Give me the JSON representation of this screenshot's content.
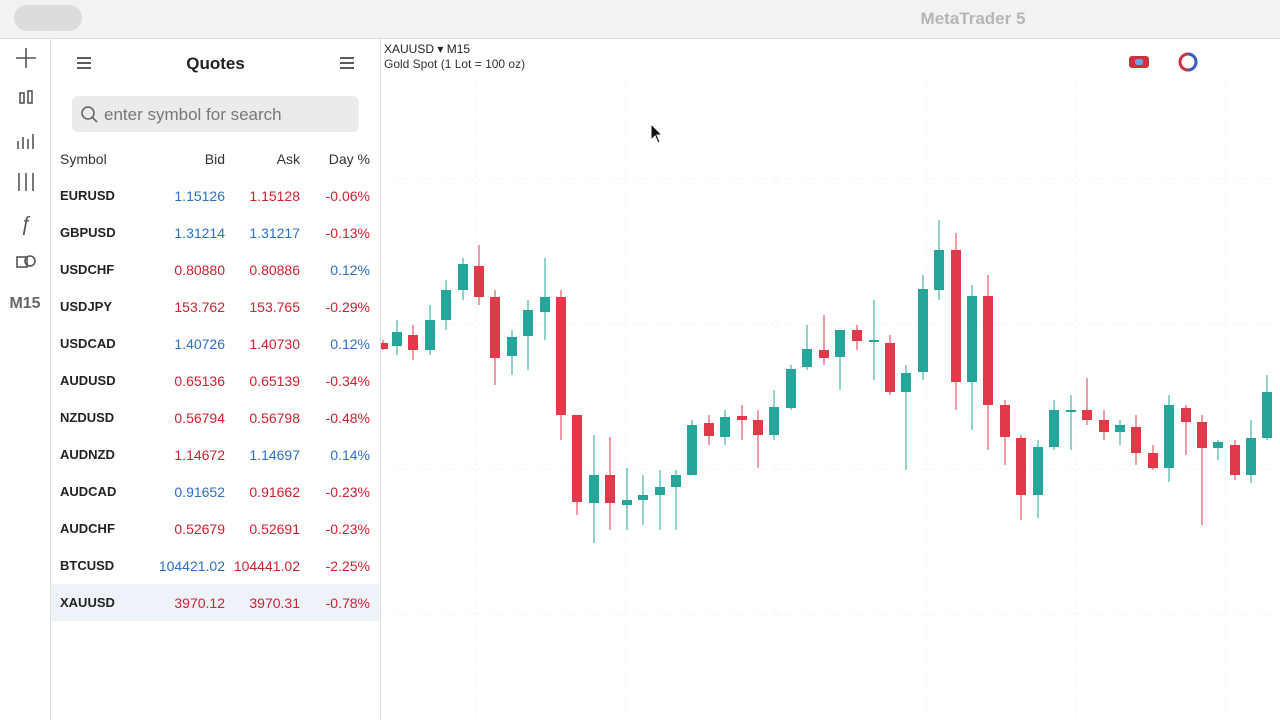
{
  "window": {
    "title": "MetaTrader 5"
  },
  "toolbar": {
    "timeframe": "M15"
  },
  "quotes": {
    "title": "Quotes",
    "search_placeholder": "enter symbol for search",
    "headers": [
      "Symbol",
      "Bid",
      "Ask",
      "Day %"
    ],
    "rows": [
      {
        "symbol": "EURUSD",
        "bid": "1.15126",
        "ask": "1.15128",
        "day": "-0.06%",
        "bid_color": "#2a6fc9",
        "ask_color": "#d0202e"
      },
      {
        "symbol": "GBPUSD",
        "bid": "1.31214",
        "ask": "1.31217",
        "day": "-0.13%",
        "bid_color": "#2a6fc9",
        "ask_color": "#2a6fc9"
      },
      {
        "symbol": "USDCHF",
        "bid": "0.80880",
        "ask": "0.80886",
        "day": "0.12%",
        "bid_color": "#d0202e",
        "ask_color": "#d0202e"
      },
      {
        "symbol": "USDJPY",
        "bid": "153.762",
        "ask": "153.765",
        "day": "-0.29%",
        "bid_color": "#d0202e",
        "ask_color": "#d0202e"
      },
      {
        "symbol": "USDCAD",
        "bid": "1.40726",
        "ask": "1.40730",
        "day": "0.12%",
        "bid_color": "#2a6fc9",
        "ask_color": "#d0202e"
      },
      {
        "symbol": "AUDUSD",
        "bid": "0.65136",
        "ask": "0.65139",
        "day": "-0.34%",
        "bid_color": "#d0202e",
        "ask_color": "#d0202e"
      },
      {
        "symbol": "NZDUSD",
        "bid": "0.56794",
        "ask": "0.56798",
        "day": "-0.48%",
        "bid_color": "#d0202e",
        "ask_color": "#d0202e"
      },
      {
        "symbol": "AUDNZD",
        "bid": "1.14672",
        "ask": "1.14697",
        "day": "0.14%",
        "bid_color": "#d0202e",
        "ask_color": "#2a6fc9"
      },
      {
        "symbol": "AUDCAD",
        "bid": "0.91652",
        "ask": "0.91662",
        "day": "-0.23%",
        "bid_color": "#2a6fc9",
        "ask_color": "#d0202e"
      },
      {
        "symbol": "AUDCHF",
        "bid": "0.52679",
        "ask": "0.52691",
        "day": "-0.23%",
        "bid_color": "#d0202e",
        "ask_color": "#d0202e"
      },
      {
        "symbol": "BTCUSD",
        "bid": "104421.02",
        "ask": "104441.02",
        "day": "-2.25%",
        "bid_color": "#2a6fc9",
        "ask_color": "#d0202e"
      },
      {
        "symbol": "XAUUSD",
        "bid": "3970.12",
        "ask": "3970.31",
        "day": "-0.78%",
        "bid_color": "#d0202e",
        "ask_color": "#d0202e"
      }
    ]
  },
  "chart": {
    "symbol": "XAUUSD",
    "timeframe": "M15",
    "description": "Gold Spot (1 Lot = 100 oz)"
  }
}
